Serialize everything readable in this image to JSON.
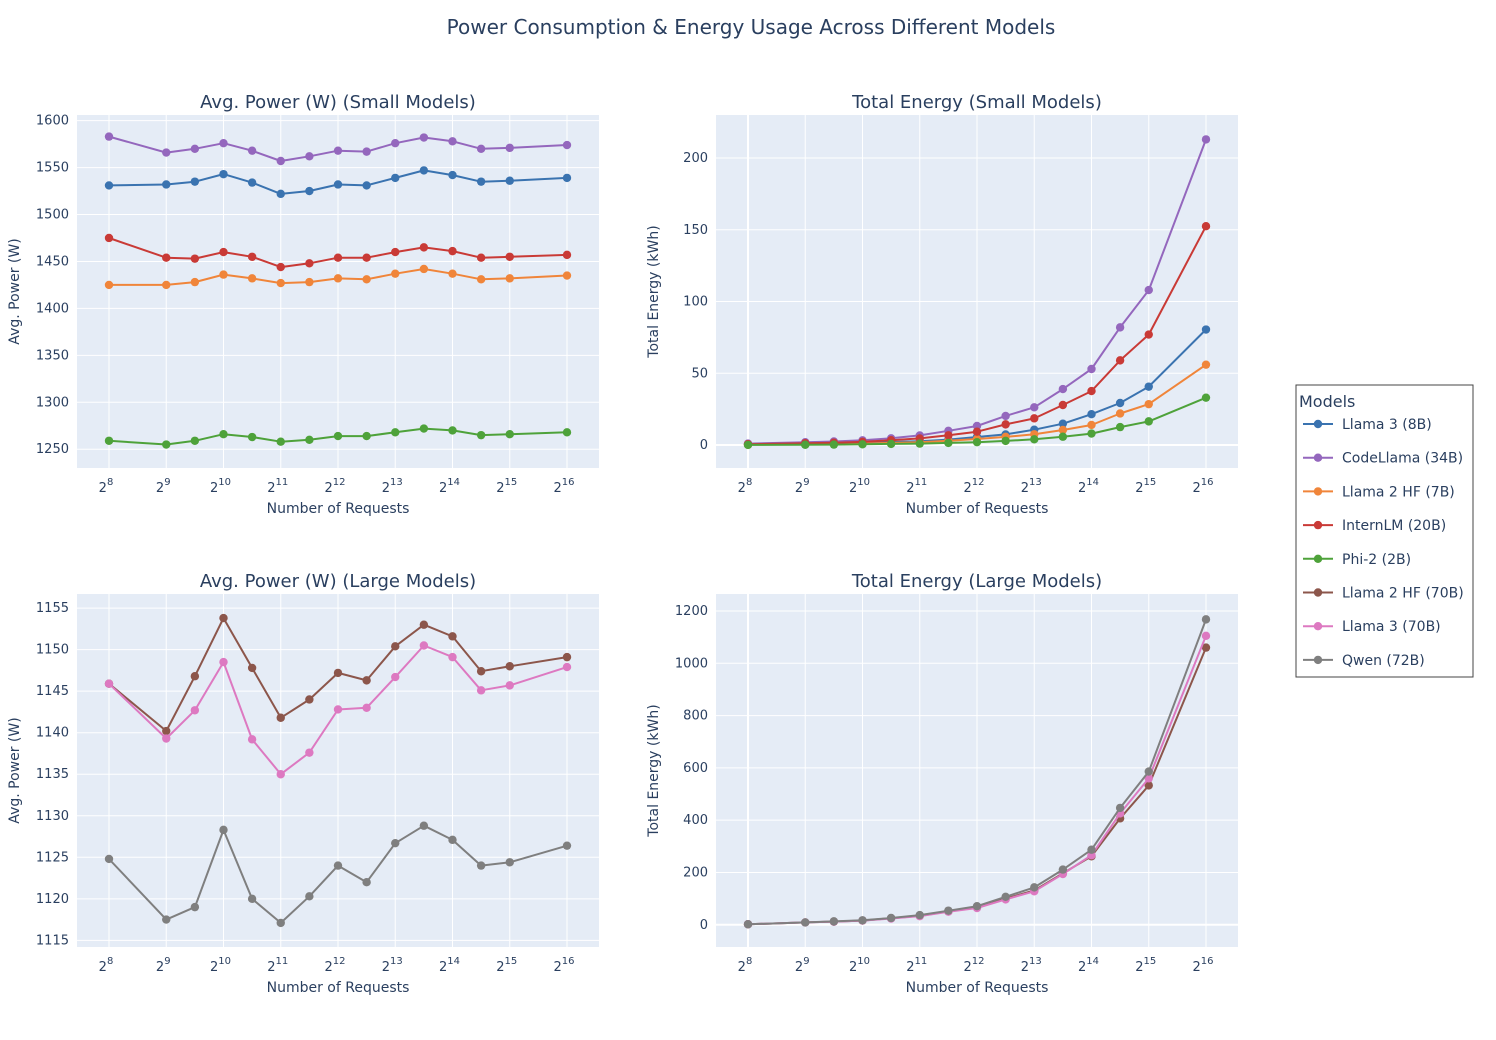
{
  "title": "Power Consumption & Energy Usage Across Different Models",
  "legend": {
    "title": "Models",
    "items": [
      {
        "name": "Llama 3 (8B)",
        "color": "#3a73b0"
      },
      {
        "name": "CodeLlama (34B)",
        "color": "#9467bd"
      },
      {
        "name": "Llama 2 HF (7B)",
        "color": "#f0853a"
      },
      {
        "name": "InternLM (20B)",
        "color": "#c93a36"
      },
      {
        "name": "Phi-2 (2B)",
        "color": "#4ea23a"
      },
      {
        "name": "Llama 2 HF (70B)",
        "color": "#8c564b"
      },
      {
        "name": "Llama 3 (70B)",
        "color": "#dd79c1"
      },
      {
        "name": "Qwen (72B)",
        "color": "#7f7f7f"
      }
    ]
  },
  "chart_data": [
    {
      "type": "line",
      "title": "Avg. Power (W) (Small Models)",
      "xlabel": "Number of Requests",
      "ylabel": "Avg. Power (W)",
      "x_scale": "log2",
      "x": [
        256,
        512,
        724,
        1024,
        1448,
        2048,
        2896,
        4096,
        5793,
        8192,
        11585,
        16384,
        23170,
        32768,
        65536
      ],
      "x_ticks": [
        {
          "value": 256,
          "exp": "8"
        },
        {
          "value": 512,
          "exp": "9"
        },
        {
          "value": 1024,
          "exp": "10"
        },
        {
          "value": 2048,
          "exp": "11"
        },
        {
          "value": 4096,
          "exp": "12"
        },
        {
          "value": 8192,
          "exp": "13"
        },
        {
          "value": 16384,
          "exp": "14"
        },
        {
          "value": 32768,
          "exp": "15"
        },
        {
          "value": 65536,
          "exp": "16"
        }
      ],
      "y_ticks": [
        1250,
        1300,
        1350,
        1400,
        1450,
        1500,
        1550,
        1600
      ],
      "y_tick_labels": [
        "1250",
        "1300",
        "1350",
        "1400",
        "1450",
        "1500",
        "1550",
        "1600"
      ],
      "ylim": [
        1230,
        1606
      ],
      "series": [
        {
          "name": "Llama 3 (8B)",
          "color": "#3a73b0",
          "values": [
            1531,
            1532,
            1535,
            1543,
            1534,
            1522,
            1525,
            1532,
            1531,
            1539,
            1547,
            1542,
            1535,
            1536,
            1539
          ]
        },
        {
          "name": "CodeLlama (34B)",
          "color": "#9467bd",
          "values": [
            1583,
            1566,
            1570,
            1576,
            1568,
            1557,
            1562,
            1568,
            1567,
            1576,
            1582,
            1578,
            1570,
            1571,
            1574
          ]
        },
        {
          "name": "Llama 2 HF (7B)",
          "color": "#f0853a",
          "values": [
            1425,
            1425,
            1428,
            1436,
            1432,
            1427,
            1428,
            1432,
            1431,
            1437,
            1442,
            1437,
            1431,
            1432,
            1435
          ]
        },
        {
          "name": "InternLM (20B)",
          "color": "#c93a36",
          "values": [
            1475,
            1454,
            1453,
            1460,
            1455,
            1444,
            1448,
            1454,
            1454,
            1460,
            1465,
            1461,
            1454,
            1455,
            1457
          ]
        },
        {
          "name": "Phi-2 (2B)",
          "color": "#4ea23a",
          "values": [
            1259,
            1255,
            1259,
            1266,
            1263,
            1258,
            1260,
            1264,
            1264,
            1268,
            1272,
            1270,
            1265,
            1266,
            1268
          ]
        }
      ]
    },
    {
      "type": "line",
      "title": "Total Energy (Small Models)",
      "xlabel": "Number of Requests",
      "ylabel": "Total Energy (kWh)",
      "x_scale": "log2",
      "x": [
        256,
        512,
        724,
        1024,
        1448,
        2048,
        2896,
        4096,
        5793,
        8192,
        11585,
        16384,
        23170,
        32768,
        65536
      ],
      "x_ticks": [
        {
          "value": 256,
          "exp": "8"
        },
        {
          "value": 512,
          "exp": "9"
        },
        {
          "value": 1024,
          "exp": "10"
        },
        {
          "value": 2048,
          "exp": "11"
        },
        {
          "value": 4096,
          "exp": "12"
        },
        {
          "value": 8192,
          "exp": "13"
        },
        {
          "value": 16384,
          "exp": "14"
        },
        {
          "value": 32768,
          "exp": "15"
        },
        {
          "value": 65536,
          "exp": "16"
        }
      ],
      "y_ticks": [
        0,
        50,
        100,
        150,
        200
      ],
      "y_tick_labels": [
        "0",
        "50",
        "100",
        "150",
        "200"
      ],
      "ylim": [
        -16,
        230
      ],
      "series": [
        {
          "name": "Llama 3 (8B)",
          "color": "#3a73b0",
          "values": [
            0.4,
            0.8,
            1.1,
            1.5,
            2.1,
            2.7,
            3.8,
            5.6,
            7.4,
            10.7,
            14.9,
            21.5,
            29.3,
            40.7,
            80.5
          ]
        },
        {
          "name": "CodeLlama (34B)",
          "color": "#9467bd",
          "values": [
            1,
            2,
            2.5,
            3.3,
            4.7,
            6.7,
            9.9,
            13.3,
            20.3,
            26.3,
            39,
            53,
            82,
            108,
            213
          ]
        },
        {
          "name": "Llama 2 HF (7B)",
          "color": "#f0853a",
          "values": [
            0.2,
            0.5,
            0.7,
            1,
            1.5,
            2,
            3,
            4.2,
            5.7,
            7.5,
            10.5,
            14,
            22,
            28.5,
            56
          ]
        },
        {
          "name": "InternLM (20B)",
          "color": "#c93a36",
          "values": [
            0.6,
            1.3,
            1.6,
            2.2,
            3.4,
            4.6,
            6.8,
            9.3,
            14.4,
            18.6,
            27.9,
            37.6,
            59,
            77,
            152.5
          ]
        },
        {
          "name": "Phi-2 (2B)",
          "color": "#4ea23a",
          "values": [
            0.1,
            0.2,
            0.3,
            0.5,
            0.8,
            1,
            1.5,
            2,
            2.9,
            4,
            5.8,
            8,
            12.5,
            16.5,
            33
          ]
        }
      ]
    },
    {
      "type": "line",
      "title": "Avg. Power (W) (Large Models)",
      "xlabel": "Number of Requests",
      "ylabel": "Avg. Power (W)",
      "x_scale": "log2",
      "x": [
        256,
        512,
        724,
        1024,
        1448,
        2048,
        2896,
        4096,
        5793,
        8192,
        11585,
        16384,
        23170,
        32768,
        65536
      ],
      "x_ticks": [
        {
          "value": 256,
          "exp": "8"
        },
        {
          "value": 512,
          "exp": "9"
        },
        {
          "value": 1024,
          "exp": "10"
        },
        {
          "value": 2048,
          "exp": "11"
        },
        {
          "value": 4096,
          "exp": "12"
        },
        {
          "value": 8192,
          "exp": "13"
        },
        {
          "value": 16384,
          "exp": "14"
        },
        {
          "value": 32768,
          "exp": "15"
        },
        {
          "value": 65536,
          "exp": "16"
        }
      ],
      "y_ticks": [
        1115,
        1120,
        1125,
        1130,
        1135,
        1140,
        1145,
        1150,
        1155
      ],
      "y_tick_labels": [
        "1115",
        "1120",
        "1125",
        "1130",
        "1135",
        "1140",
        "1145",
        "1150",
        "1155"
      ],
      "ylim": [
        1114.2,
        1156.7
      ],
      "series": [
        {
          "name": "Llama 2 HF (70B)",
          "color": "#8c564b",
          "values": [
            1145.9,
            1140.2,
            1146.8,
            1153.8,
            1147.8,
            1141.8,
            1144.0,
            1147.2,
            1146.3,
            1150.4,
            1153.0,
            1151.6,
            1147.4,
            1148.0,
            1149.1
          ]
        },
        {
          "name": "Llama 3 (70B)",
          "color": "#dd79c1",
          "values": [
            1145.9,
            1139.3,
            1142.7,
            1148.5,
            1139.2,
            1135.0,
            1137.6,
            1142.8,
            1143.0,
            1146.7,
            1150.5,
            1149.1,
            1145.1,
            1145.7,
            1147.9
          ]
        },
        {
          "name": "Qwen (72B)",
          "color": "#7f7f7f",
          "values": [
            1124.8,
            1117.5,
            1119.0,
            1128.3,
            1120.0,
            1117.1,
            1120.3,
            1124.0,
            1122.0,
            1126.7,
            1128.8,
            1127.1,
            1124.0,
            1124.4,
            1126.4
          ]
        }
      ]
    },
    {
      "type": "line",
      "title": "Total Energy (Large Models)",
      "xlabel": "Number of Requests",
      "ylabel": "Total Energy (kWh)",
      "x_scale": "log2",
      "x": [
        256,
        512,
        724,
        1024,
        1448,
        2048,
        2896,
        4096,
        5793,
        8192,
        11585,
        16384,
        23170,
        32768,
        65536
      ],
      "x_ticks": [
        {
          "value": 256,
          "exp": "8"
        },
        {
          "value": 512,
          "exp": "9"
        },
        {
          "value": 1024,
          "exp": "10"
        },
        {
          "value": 2048,
          "exp": "11"
        },
        {
          "value": 4096,
          "exp": "12"
        },
        {
          "value": 8192,
          "exp": "13"
        },
        {
          "value": 16384,
          "exp": "14"
        },
        {
          "value": 32768,
          "exp": "15"
        },
        {
          "value": 65536,
          "exp": "16"
        }
      ],
      "y_ticks": [
        0,
        200,
        400,
        600,
        800,
        1000,
        1200
      ],
      "y_tick_labels": [
        "0",
        "200",
        "400",
        "600",
        "800",
        "1000",
        "1200"
      ],
      "ylim": [
        -85,
        1265
      ],
      "series": [
        {
          "name": "Llama 2 HF (70B)",
          "color": "#8c564b",
          "values": [
            2,
            9,
            12,
            16,
            25,
            34,
            51,
            66,
            100,
            131,
            197,
            262,
            407,
            533,
            1060
          ]
        },
        {
          "name": "Llama 3 (70B)",
          "color": "#dd79c1",
          "values": [
            2,
            9,
            12,
            16,
            24,
            33,
            50,
            64,
            97,
            128,
            194,
            266,
            426,
            560,
            1105
          ]
        },
        {
          "name": "Qwen (72B)",
          "color": "#7f7f7f",
          "values": [
            2,
            9,
            13,
            17,
            26,
            37,
            54,
            71,
            107,
            143,
            211,
            287,
            447,
            586,
            1168
          ]
        }
      ]
    }
  ]
}
